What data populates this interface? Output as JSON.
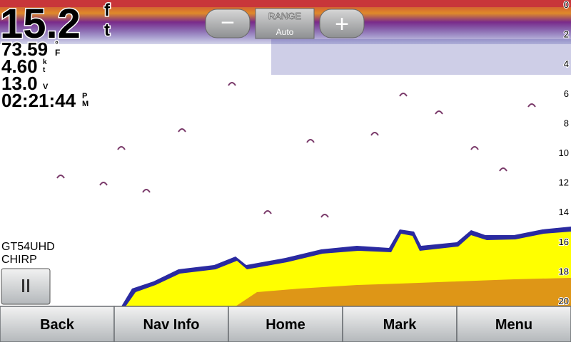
{
  "readouts": {
    "depth": {
      "value": "15.2",
      "unit": [
        "f",
        "t"
      ]
    },
    "temperature": {
      "value": "73.59",
      "unit": [
        "°",
        "F"
      ]
    },
    "speed": {
      "value": "4.60",
      "unit": [
        "k",
        "t"
      ]
    },
    "voltage": {
      "value": "13.0",
      "unit": [
        "V"
      ]
    },
    "time": {
      "value": "02:21:44",
      "unit": [
        "P",
        "M"
      ]
    }
  },
  "range_control": {
    "minus": "−",
    "title": "RANGE",
    "mode": "Auto",
    "plus": "+"
  },
  "depth_scale": [
    0,
    2,
    4,
    6,
    8,
    10,
    12,
    14,
    16,
    18,
    20
  ],
  "transducer": {
    "model": "GT54UHD",
    "mode": "CHIRP"
  },
  "buttons": [
    "Back",
    "Nav Info",
    "Home",
    "Mark",
    "Menu"
  ]
}
